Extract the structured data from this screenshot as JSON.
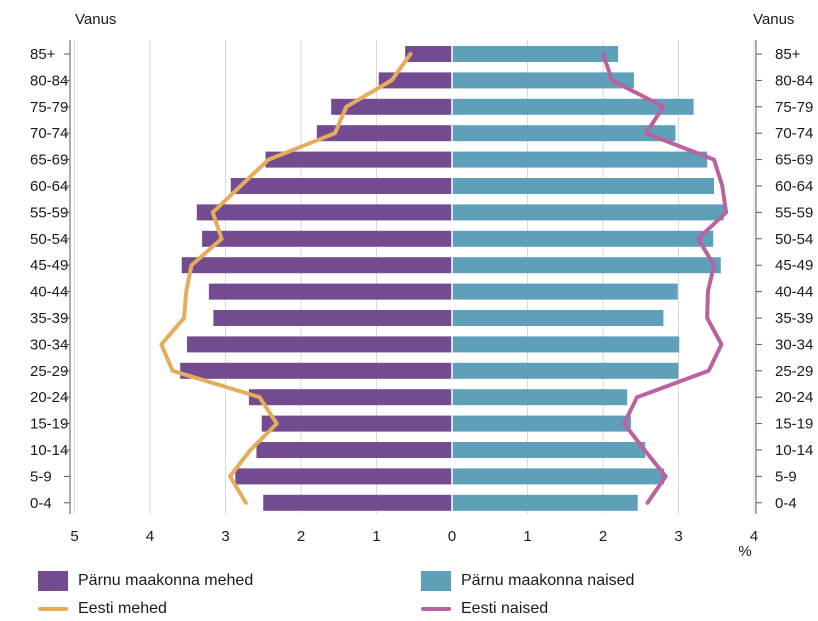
{
  "chart_data": {
    "type": "bar",
    "subtype": "population-pyramid",
    "left_axis_title": "Vanus",
    "right_axis_title": "Vanus",
    "x_unit": "%",
    "x_ticks": [
      "5",
      "4",
      "3",
      "2",
      "1",
      "0",
      "1",
      "2",
      "3",
      "4"
    ],
    "xlim": [
      -5,
      4
    ],
    "grid": true,
    "legend_position": "bottom",
    "categories": [
      "85+",
      "80-84",
      "75-79",
      "70-74",
      "65-69",
      "60-64",
      "55-59",
      "50-54",
      "45-49",
      "40-44",
      "35-39",
      "30-34",
      "25-29",
      "20-24",
      "15-19",
      "10-14",
      "5-9",
      "0-4"
    ],
    "series": [
      {
        "name": "Pärnu maakonna mehed",
        "kind": "bar",
        "side": "left",
        "color": "#734b91",
        "values": [
          0.62,
          0.97,
          1.6,
          1.79,
          2.47,
          2.93,
          3.38,
          3.31,
          3.58,
          3.22,
          3.16,
          3.51,
          3.6,
          2.69,
          2.52,
          2.59,
          2.87,
          2.5
        ]
      },
      {
        "name": "Pärnu maakonna naised",
        "kind": "bar",
        "side": "right",
        "color": "#5e9fba",
        "values": [
          2.2,
          2.41,
          3.2,
          2.96,
          3.38,
          3.47,
          3.6,
          3.46,
          3.56,
          2.99,
          2.8,
          3.01,
          3.0,
          2.32,
          2.37,
          2.56,
          2.81,
          2.46
        ]
      },
      {
        "name": "Eesti mehed",
        "kind": "line",
        "side": "left",
        "color": "#e5ad5b",
        "values": [
          0.55,
          0.8,
          1.4,
          1.55,
          2.43,
          2.8,
          3.17,
          3.05,
          3.45,
          3.52,
          3.55,
          3.85,
          3.7,
          2.55,
          2.32,
          2.67,
          2.94,
          2.73
        ]
      },
      {
        "name": "Eesti naised",
        "kind": "line",
        "side": "right",
        "color": "#b8629f",
        "values": [
          2.0,
          2.12,
          2.8,
          2.57,
          3.47,
          3.58,
          3.63,
          3.26,
          3.47,
          3.39,
          3.38,
          3.57,
          3.4,
          2.45,
          2.28,
          2.55,
          2.83,
          2.59
        ]
      }
    ]
  }
}
